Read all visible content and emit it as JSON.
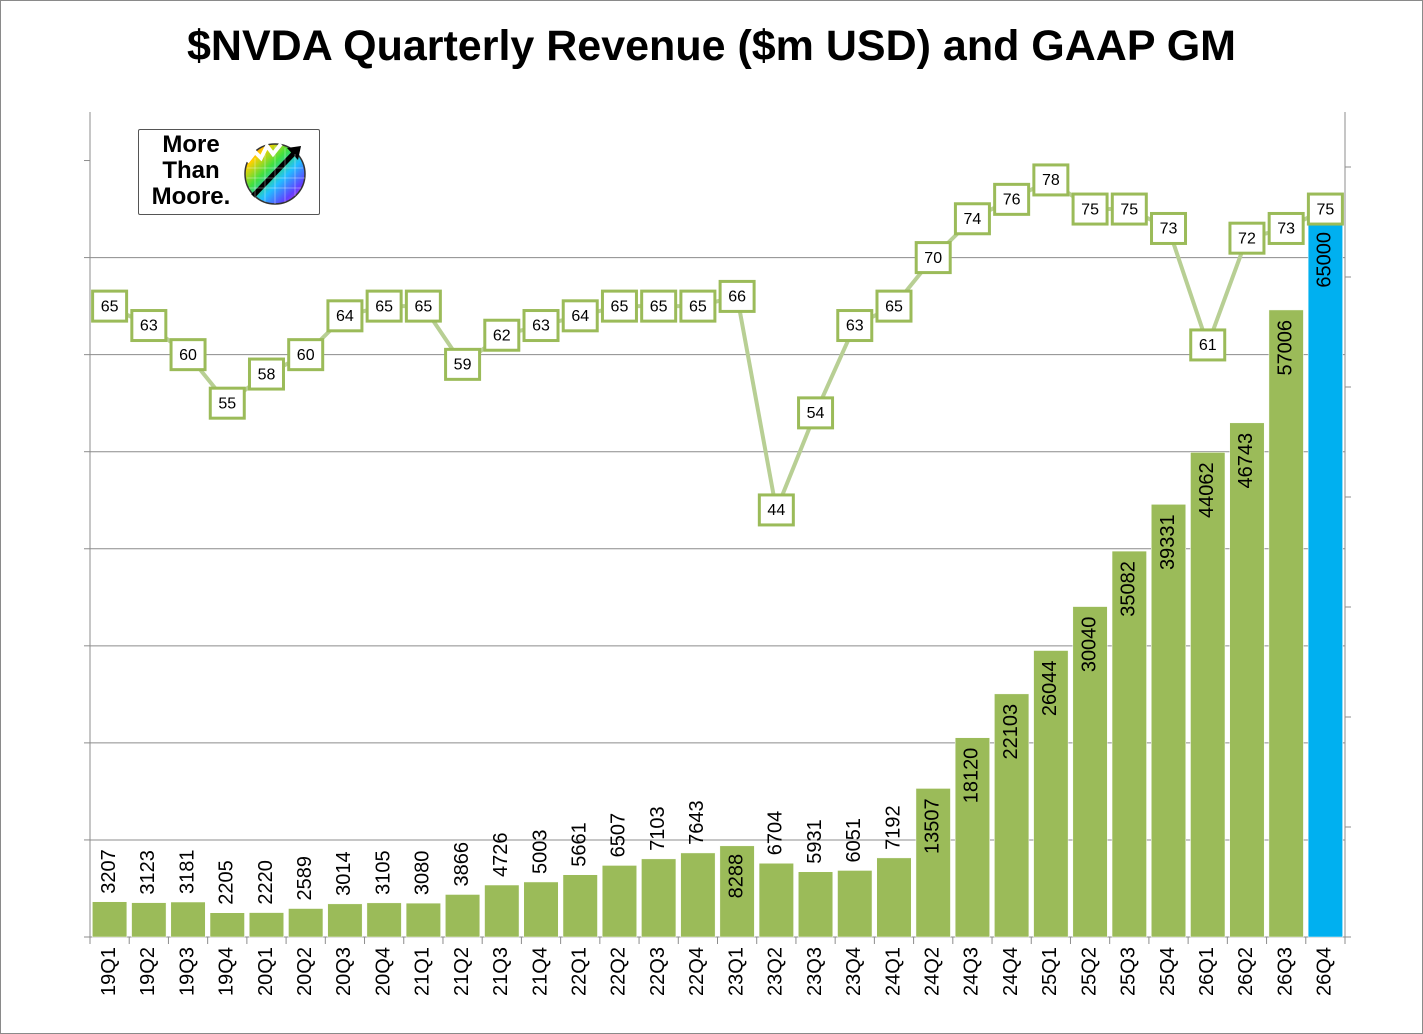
{
  "chart_data": {
    "type": "bar",
    "title": "$NVDA Quarterly Revenue ($m USD) and GAAP GM",
    "categories": [
      "19Q1",
      "19Q2",
      "19Q3",
      "19Q4",
      "20Q1",
      "20Q2",
      "20Q3",
      "20Q4",
      "21Q1",
      "21Q2",
      "21Q3",
      "21Q4",
      "22Q1",
      "22Q2",
      "22Q3",
      "22Q4",
      "23Q1",
      "23Q2",
      "23Q3",
      "23Q4",
      "24Q1",
      "24Q2",
      "24Q3",
      "24Q4",
      "25Q1",
      "25Q2",
      "25Q3",
      "25Q4",
      "26Q1",
      "26Q2",
      "26Q3",
      "26Q4"
    ],
    "series": [
      {
        "kind": "bar",
        "values": [
          3207,
          3123,
          3181,
          2205,
          2220,
          2589,
          3014,
          3105,
          3080,
          3866,
          4726,
          5003,
          5661,
          6507,
          7103,
          7643,
          8288,
          6704,
          5931,
          6051,
          7192,
          13507,
          18120,
          22103,
          26044,
          30040,
          35082,
          39331,
          44062,
          46743,
          57006,
          65000
        ],
        "color": "#9bbb59",
        "highlight_color": "#00b0f0",
        "highlight_index": 31
      },
      {
        "kind": "line",
        "values": [
          65,
          63,
          60,
          55,
          58,
          60,
          64,
          65,
          65,
          59,
          62,
          63,
          64,
          65,
          65,
          65,
          66,
          44,
          54,
          63,
          65,
          70,
          74,
          76,
          78,
          75,
          75,
          73,
          61,
          72,
          73,
          75
        ],
        "color": "#b8cf94",
        "marker_border": "#9bbb59"
      }
    ],
    "ylim_bars": [
      0,
      75000
    ],
    "ylim_line": [
      0,
      85
    ],
    "grid": true,
    "legend": "none"
  },
  "logo": {
    "line1": "More",
    "line2": "Than",
    "line3": "Moore."
  }
}
